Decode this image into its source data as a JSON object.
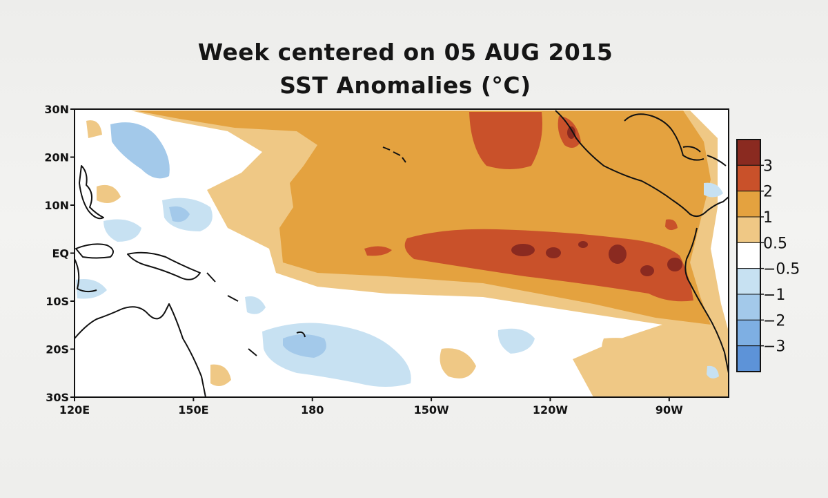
{
  "title": {
    "line1": "Week centered on 05 AUG 2015",
    "line2": "SST Anomalies (°C)"
  },
  "map": {
    "projection": "equirectangular",
    "lon_range_east": [
      120,
      285
    ],
    "lat_range": [
      -30,
      30
    ],
    "lat_ticks": [
      {
        "lat": 30,
        "label": "30N"
      },
      {
        "lat": 20,
        "label": "20N"
      },
      {
        "lat": 10,
        "label": "10N"
      },
      {
        "lat": 0,
        "label": "EQ"
      },
      {
        "lat": -10,
        "label": "10S"
      },
      {
        "lat": -20,
        "label": "20S"
      },
      {
        "lat": -30,
        "label": "30S"
      }
    ],
    "lon_ticks": [
      {
        "lon": 120,
        "label": "120E"
      },
      {
        "lon": 150,
        "label": "150E"
      },
      {
        "lon": 180,
        "label": "180"
      },
      {
        "lon": 210,
        "label": "150W"
      },
      {
        "lon": 240,
        "label": "120W"
      },
      {
        "lon": 270,
        "label": "90W"
      }
    ],
    "colors": {
      "neg3": "#5d93d8",
      "neg2": "#7eafe3",
      "neg1": "#a3c9ea",
      "neg05": "#c7e1f2",
      "neutral": "#ffffff",
      "pos05": "#efc885",
      "pos1": "#e4a23f",
      "pos2": "#c9512a",
      "pos3": "#8a2a20",
      "land_outline": "#111111"
    }
  },
  "colorbar": {
    "levels": [
      "3",
      "2",
      "1",
      "0.5",
      "−0.5",
      "−1",
      "−2",
      "−3"
    ],
    "bins": [
      {
        "color": "#8a2a20"
      },
      {
        "color": "#c9512a"
      },
      {
        "color": "#e4a23f"
      },
      {
        "color": "#efc885"
      },
      {
        "color": "#ffffff"
      },
      {
        "color": "#c7e1f2"
      },
      {
        "color": "#a3c9ea"
      },
      {
        "color": "#7eafe3"
      },
      {
        "color": "#5d93d8"
      }
    ]
  }
}
